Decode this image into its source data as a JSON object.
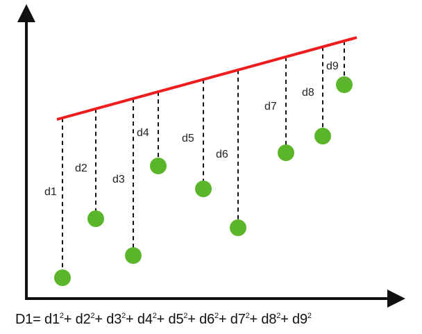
{
  "diagram": {
    "colors": {
      "regression_line": "#ee1c1c",
      "point": "#5ab52a",
      "axes": "#111111",
      "dash": "#111111"
    },
    "distance_labels": [
      "d1",
      "d2",
      "d3",
      "d4",
      "d5",
      "d6",
      "d7",
      "d8",
      "d9"
    ],
    "formula": {
      "lhs": "D1=",
      "terms": [
        "d1",
        "d2",
        "d3",
        "d4",
        "d5",
        "d6",
        "d7",
        "d8",
        "d9"
      ],
      "exponent": "2",
      "operator": "+"
    }
  }
}
